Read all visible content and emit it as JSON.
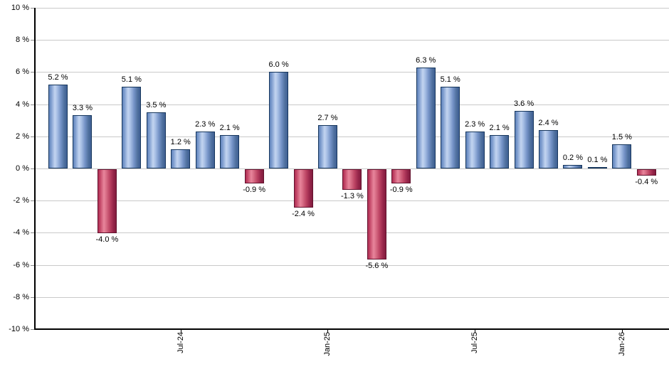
{
  "chart_data": {
    "type": "bar",
    "title": "",
    "xlabel": "",
    "ylabel": "",
    "unit": "%",
    "ylim": [
      -10,
      10
    ],
    "ytick_step": 2,
    "grid": "horizontal",
    "legend": "none",
    "positive_color": "#7f9ecf",
    "positive_border_color": "#16365c",
    "negative_color": "#c54a6a",
    "negative_border_color": "#63122e",
    "gridline_color": "#c9c9c9",
    "axis_color": "#000000",
    "bars": [
      {
        "value": 5.2,
        "label": "5.2 %"
      },
      {
        "value": 3.3,
        "label": "3.3 %"
      },
      {
        "value": -4.0,
        "label": "-4.0 %"
      },
      {
        "value": 5.1,
        "label": "5.1 %"
      },
      {
        "value": 3.5,
        "label": "3.5 %"
      },
      {
        "value": 1.2,
        "label": "1.2 %"
      },
      {
        "value": 2.3,
        "label": "2.3 %"
      },
      {
        "value": 2.1,
        "label": "2.1 %"
      },
      {
        "value": -0.9,
        "label": "-0.9 %"
      },
      {
        "value": 6.0,
        "label": "6.0 %"
      },
      {
        "value": -2.4,
        "label": "-2.4 %"
      },
      {
        "value": 2.7,
        "label": "2.7 %"
      },
      {
        "value": -1.3,
        "label": "-1.3 %"
      },
      {
        "value": -5.6,
        "label": "-5.6 %"
      },
      {
        "value": -0.9,
        "label": "-0.9 %"
      },
      {
        "value": 6.3,
        "label": "6.3 %"
      },
      {
        "value": 5.1,
        "label": "5.1 %"
      },
      {
        "value": 2.3,
        "label": "2.3 %"
      },
      {
        "value": 2.1,
        "label": "2.1 %"
      },
      {
        "value": 3.6,
        "label": "3.6 %"
      },
      {
        "value": 2.4,
        "label": "2.4 %"
      },
      {
        "value": 0.2,
        "label": "0.2 %"
      },
      {
        "value": 0.1,
        "label": "0.1 %"
      },
      {
        "value": 1.5,
        "label": "1.5 %"
      },
      {
        "value": -0.4,
        "label": "-0.4 %"
      }
    ],
    "y_ticks": [
      {
        "value": 10,
        "label": "10 %"
      },
      {
        "value": 8,
        "label": "8 %"
      },
      {
        "value": 6,
        "label": "6 %"
      },
      {
        "value": 4,
        "label": "4 %"
      },
      {
        "value": 2,
        "label": "2 %"
      },
      {
        "value": 0,
        "label": "0 %"
      },
      {
        "value": -2,
        "label": "-2 %"
      },
      {
        "value": -4,
        "label": "-4 %"
      },
      {
        "value": -6,
        "label": "-6 %"
      },
      {
        "value": -8,
        "label": "-8 %"
      },
      {
        "value": -10,
        "label": "-10 %"
      }
    ],
    "x_ticks": [
      {
        "bar_index": 5,
        "label": "Jul-24"
      },
      {
        "bar_index": 11,
        "label": "Jan-25"
      },
      {
        "bar_index": 17,
        "label": "Jul-25"
      },
      {
        "bar_index": 23,
        "label": "Jan-26"
      }
    ]
  }
}
